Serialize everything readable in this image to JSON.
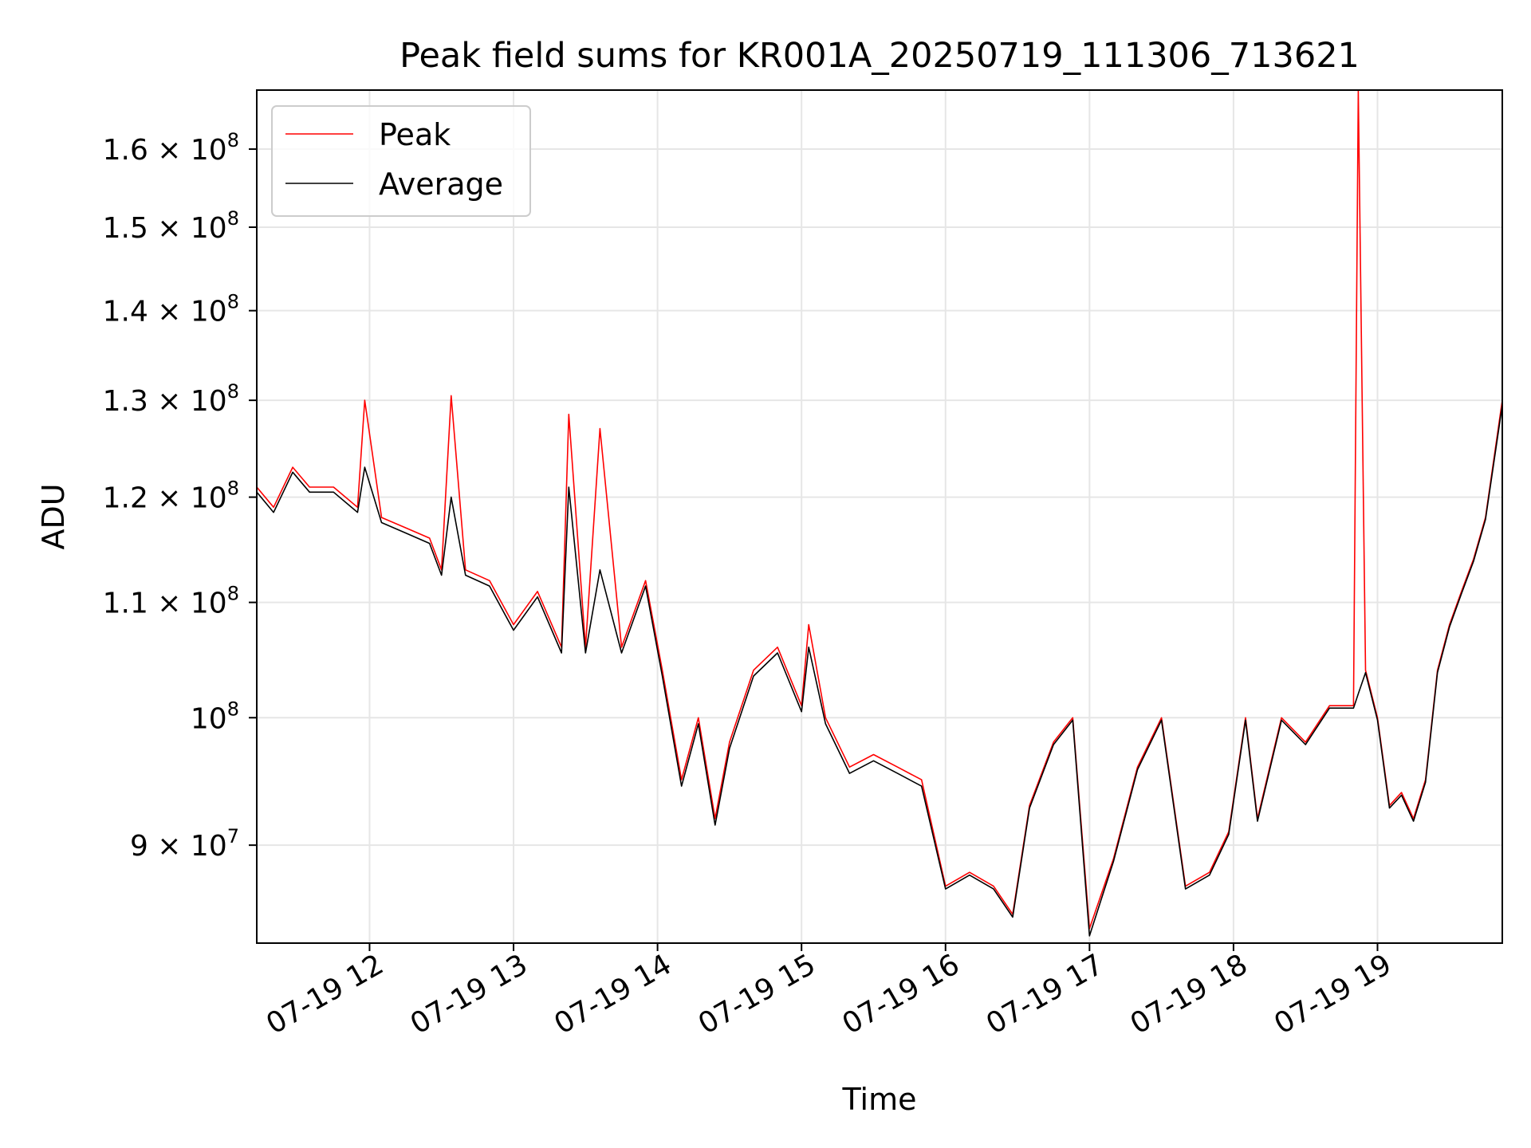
{
  "chart_data": {
    "type": "line",
    "title": "Peak field sums for KR001A_20250719_111306_713621",
    "xlabel": "Time",
    "ylabel": "ADU",
    "x_range": [
      "2025-07-19 11:13",
      "2025-07-19 19:52"
    ],
    "ylim": [
      83000000,
      168000000
    ],
    "y_scale": "log",
    "grid": true,
    "legend_position": "upper left",
    "x_ticks": [
      "07-19 12",
      "07-19 13",
      "07-19 14",
      "07-19 15",
      "07-19 16",
      "07-19 17",
      "07-19 18",
      "07-19 19"
    ],
    "y_ticks": [
      {
        "value": 90000000,
        "mantissa": "9",
        "exp": "7"
      },
      {
        "value": 100000000,
        "mantissa": "",
        "exp": "8"
      },
      {
        "value": 110000000,
        "mantissa": "1.1",
        "exp": "8"
      },
      {
        "value": 120000000,
        "mantissa": "1.2",
        "exp": "8"
      },
      {
        "value": 130000000,
        "mantissa": "1.3",
        "exp": "8"
      },
      {
        "value": 140000000,
        "mantissa": "1.4",
        "exp": "8"
      },
      {
        "value": 150000000,
        "mantissa": "1.5",
        "exp": "8"
      },
      {
        "value": 160000000,
        "mantissa": "1.6",
        "exp": "8"
      }
    ],
    "tick_suffix": "× 10",
    "series": [
      {
        "name": "Peak",
        "color": "#ff0000",
        "x": [
          "2025-07-19 11:13",
          "2025-07-19 11:20",
          "2025-07-19 11:28",
          "2025-07-19 11:35",
          "2025-07-19 11:45",
          "2025-07-19 11:55",
          "2025-07-19 11:58",
          "2025-07-19 12:05",
          "2025-07-19 12:15",
          "2025-07-19 12:25",
          "2025-07-19 12:30",
          "2025-07-19 12:34",
          "2025-07-19 12:40",
          "2025-07-19 12:50",
          "2025-07-19 13:00",
          "2025-07-19 13:10",
          "2025-07-19 13:20",
          "2025-07-19 13:23",
          "2025-07-19 13:30",
          "2025-07-19 13:36",
          "2025-07-19 13:45",
          "2025-07-19 13:55",
          "2025-07-19 14:02",
          "2025-07-19 14:10",
          "2025-07-19 14:17",
          "2025-07-19 14:24",
          "2025-07-19 14:30",
          "2025-07-19 14:40",
          "2025-07-19 14:50",
          "2025-07-19 15:00",
          "2025-07-19 15:03",
          "2025-07-19 15:10",
          "2025-07-19 15:20",
          "2025-07-19 15:30",
          "2025-07-19 15:40",
          "2025-07-19 15:50",
          "2025-07-19 16:00",
          "2025-07-19 16:10",
          "2025-07-19 16:20",
          "2025-07-19 16:28",
          "2025-07-19 16:35",
          "2025-07-19 16:45",
          "2025-07-19 16:53",
          "2025-07-19 17:00",
          "2025-07-19 17:10",
          "2025-07-19 17:20",
          "2025-07-19 17:30",
          "2025-07-19 17:40",
          "2025-07-19 17:50",
          "2025-07-19 17:58",
          "2025-07-19 18:05",
          "2025-07-19 18:10",
          "2025-07-19 18:20",
          "2025-07-19 18:30",
          "2025-07-19 18:40",
          "2025-07-19 18:50",
          "2025-07-19 18:52",
          "2025-07-19 18:55",
          "2025-07-19 19:00",
          "2025-07-19 19:05",
          "2025-07-19 19:10",
          "2025-07-19 19:15",
          "2025-07-19 19:20",
          "2025-07-19 19:25",
          "2025-07-19 19:30",
          "2025-07-19 19:35",
          "2025-07-19 19:40",
          "2025-07-19 19:45",
          "2025-07-19 19:52"
        ],
        "y": [
          121000000,
          119000000,
          123000000,
          121000000,
          121000000,
          119000000,
          130000000,
          118000000,
          117000000,
          116000000,
          113000000,
          130500000,
          113000000,
          112000000,
          108000000,
          111000000,
          106000000,
          128500000,
          106000000,
          127000000,
          106000000,
          112000000,
          104000000,
          95000000,
          100000000,
          92000000,
          98000000,
          104000000,
          106000000,
          101000000,
          108000000,
          100000000,
          96000000,
          97000000,
          96000000,
          95000000,
          87000000,
          88000000,
          87000000,
          85000000,
          93000000,
          98000000,
          100000000,
          84000000,
          89000000,
          96000000,
          100000000,
          87000000,
          88000000,
          91000000,
          100000000,
          92000000,
          100000000,
          98000000,
          101000000,
          101000000,
          168000000,
          104000000,
          100000000,
          93000000,
          94000000,
          92000000,
          95000000,
          104000000,
          108000000,
          111000000,
          114000000,
          118000000,
          130000000
        ]
      },
      {
        "name": "Average",
        "color": "#000000",
        "x": [
          "2025-07-19 11:13",
          "2025-07-19 11:20",
          "2025-07-19 11:28",
          "2025-07-19 11:35",
          "2025-07-19 11:45",
          "2025-07-19 11:55",
          "2025-07-19 11:58",
          "2025-07-19 12:05",
          "2025-07-19 12:15",
          "2025-07-19 12:25",
          "2025-07-19 12:30",
          "2025-07-19 12:34",
          "2025-07-19 12:40",
          "2025-07-19 12:50",
          "2025-07-19 13:00",
          "2025-07-19 13:10",
          "2025-07-19 13:20",
          "2025-07-19 13:23",
          "2025-07-19 13:30",
          "2025-07-19 13:36",
          "2025-07-19 13:45",
          "2025-07-19 13:55",
          "2025-07-19 14:02",
          "2025-07-19 14:10",
          "2025-07-19 14:17",
          "2025-07-19 14:24",
          "2025-07-19 14:30",
          "2025-07-19 14:40",
          "2025-07-19 14:50",
          "2025-07-19 15:00",
          "2025-07-19 15:03",
          "2025-07-19 15:10",
          "2025-07-19 15:20",
          "2025-07-19 15:30",
          "2025-07-19 15:40",
          "2025-07-19 15:50",
          "2025-07-19 16:00",
          "2025-07-19 16:10",
          "2025-07-19 16:20",
          "2025-07-19 16:28",
          "2025-07-19 16:35",
          "2025-07-19 16:45",
          "2025-07-19 16:53",
          "2025-07-19 17:00",
          "2025-07-19 17:10",
          "2025-07-19 17:20",
          "2025-07-19 17:30",
          "2025-07-19 17:40",
          "2025-07-19 17:50",
          "2025-07-19 17:58",
          "2025-07-19 18:05",
          "2025-07-19 18:10",
          "2025-07-19 18:20",
          "2025-07-19 18:30",
          "2025-07-19 18:40",
          "2025-07-19 18:50",
          "2025-07-19 18:52",
          "2025-07-19 18:55",
          "2025-07-19 19:00",
          "2025-07-19 19:05",
          "2025-07-19 19:10",
          "2025-07-19 19:15",
          "2025-07-19 19:20",
          "2025-07-19 19:25",
          "2025-07-19 19:30",
          "2025-07-19 19:35",
          "2025-07-19 19:40",
          "2025-07-19 19:45",
          "2025-07-19 19:52"
        ],
        "y": [
          120500000,
          118500000,
          122500000,
          120500000,
          120500000,
          118500000,
          123000000,
          117500000,
          116500000,
          115500000,
          112500000,
          120000000,
          112500000,
          111500000,
          107500000,
          110500000,
          105500000,
          121000000,
          105500000,
          113000000,
          105500000,
          111500000,
          103500000,
          94500000,
          99500000,
          91500000,
          97500000,
          103500000,
          105500000,
          100500000,
          106000000,
          99500000,
          95500000,
          96500000,
          95500000,
          94500000,
          86800000,
          87800000,
          86800000,
          84800000,
          92800000,
          97800000,
          99800000,
          83500000,
          88800000,
          95800000,
          99800000,
          86800000,
          87800000,
          90800000,
          99800000,
          91800000,
          99800000,
          97800000,
          100800000,
          100800000,
          102000000,
          103800000,
          99800000,
          92800000,
          93800000,
          91800000,
          94800000,
          103800000,
          107800000,
          110800000,
          113800000,
          117800000,
          129500000
        ]
      }
    ]
  }
}
